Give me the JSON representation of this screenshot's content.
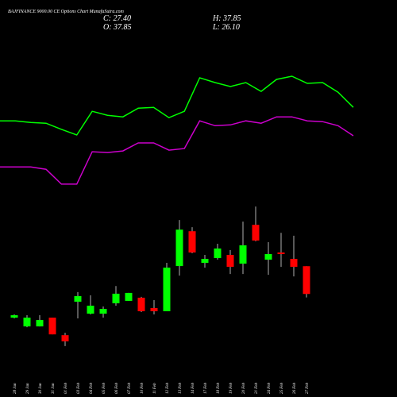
{
  "chart_data": {
    "type": "candlestick",
    "title": "BAJFINANCE 9000.00 CE Options  Chart MunafaSutra.com",
    "summary": [
      {
        "value": 27.4,
        "label": "C: 27.40"
      },
      {
        "value": 37.85,
        "label": "O: 37.85"
      },
      {
        "value": 37.85,
        "label": "H: 37.85"
      },
      {
        "value": 26.1,
        "label": "L: 26.10"
      }
    ],
    "categories": [
      "28 Jan",
      "29 Jan",
      "30 Jan",
      "31 Jan",
      "01 Feb",
      "03 Feb",
      "04 Feb",
      "05 Feb",
      "06 Feb",
      "07 Feb",
      "10 Feb",
      "11 Feb",
      "12 Feb",
      "13 Feb",
      "14 Feb",
      "17 Feb",
      "18 Feb",
      "19 Feb",
      "20 Feb",
      "21 Feb",
      "24 Feb",
      "25 Feb",
      "26 Feb",
      "27 Feb"
    ],
    "open": [
      18.5,
      15.2,
      15.2,
      18.5,
      11.9,
      24.5,
      20.0,
      20.0,
      23.9,
      24.8,
      26.0,
      22.1,
      20.9,
      37.9,
      51.0,
      39.1,
      40.9,
      42.1,
      38.8,
      53.4,
      40.3,
      43.0,
      40.6,
      37.85
    ],
    "high": [
      19.7,
      19.4,
      19.4,
      18.5,
      12.8,
      28.1,
      26.9,
      22.7,
      30.4,
      27.8,
      26.3,
      25.1,
      39.1,
      55.2,
      52.5,
      42.1,
      46.3,
      43.9,
      54.6,
      60.3,
      46.9,
      50.4,
      49.3,
      37.85
    ],
    "low": [
      18.2,
      14.9,
      15.2,
      12.2,
      7.8,
      18.2,
      19.7,
      18.5,
      23.0,
      24.8,
      20.6,
      19.7,
      20.9,
      34.3,
      42.7,
      37.3,
      40.3,
      34.9,
      34.9,
      47.2,
      34.6,
      37.6,
      34.0,
      26.1
    ],
    "close": [
      19.4,
      18.5,
      17.6,
      12.2,
      9.6,
      26.6,
      23.0,
      21.8,
      27.5,
      27.8,
      20.9,
      20.9,
      37.3,
      51.6,
      43.0,
      40.6,
      44.5,
      37.6,
      45.7,
      47.5,
      42.4,
      42.4,
      37.6,
      27.4
    ],
    "up_color": "#00ff00",
    "down_color": "#ff0000",
    "lines": [
      {
        "color": "#00ff00",
        "values": [
          92.5,
          92.5,
          91.9,
          91.6,
          89.3,
          87.2,
          96.1,
          94.6,
          94.0,
          97.3,
          97.6,
          93.7,
          96.1,
          108.7,
          106.9,
          105.4,
          106.9,
          103.6,
          108.1,
          109.3,
          106.6,
          106.9,
          103.3,
          97.6
        ]
      },
      {
        "color": "#cc00cc",
        "values": [
          75.2,
          75.2,
          75.2,
          74.3,
          68.7,
          68.7,
          80.9,
          80.6,
          81.2,
          84.2,
          84.2,
          81.5,
          82.1,
          92.5,
          90.7,
          91.0,
          92.5,
          91.6,
          94.0,
          94.0,
          92.5,
          92.2,
          90.7,
          86.9
        ]
      }
    ],
    "ylim": [
      0,
      129
    ]
  }
}
